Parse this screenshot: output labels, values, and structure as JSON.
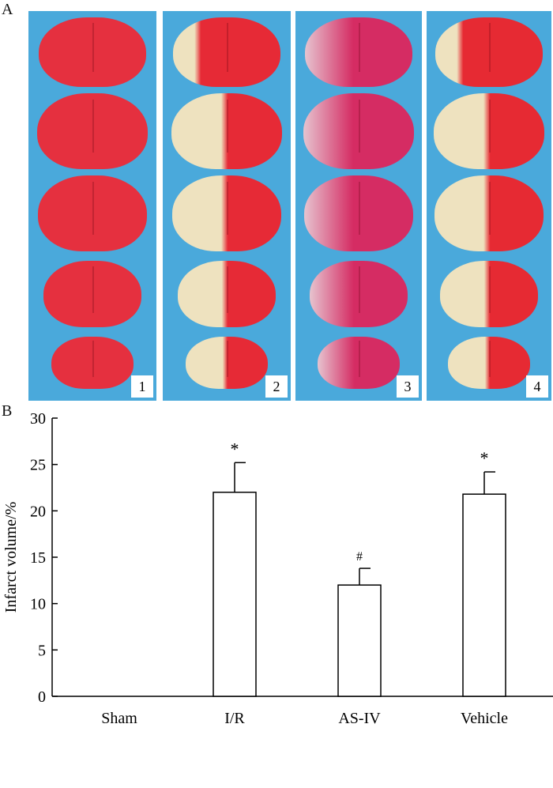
{
  "panel_a_label": "A",
  "panel_b_label": "B",
  "photos": [
    {
      "number": "1",
      "tissue_color": "#e5303f",
      "infarct_side": "none"
    },
    {
      "number": "2",
      "tissue_color": "#e62a36",
      "infarct_side": "left"
    },
    {
      "number": "3",
      "tissue_color": "#d52c63",
      "infarct_side": "left-faint"
    },
    {
      "number": "4",
      "tissue_color": "#e62a33",
      "infarct_side": "left"
    }
  ],
  "colors": {
    "photo_background": "#4aa9db",
    "infarct": "#eee2bf",
    "bar_fill": "#ffffff",
    "bar_stroke": "#000000"
  },
  "chart_data": {
    "type": "bar",
    "categories": [
      "Sham",
      "I/R",
      "AS-IV",
      "Vehicle"
    ],
    "values": [
      0,
      22,
      12,
      21.8
    ],
    "errors": [
      0,
      3.2,
      1.8,
      2.4
    ],
    "significance": [
      "",
      "*",
      "#",
      "*"
    ],
    "ylabel": "Infarct volume/%",
    "ylim": [
      0,
      30
    ],
    "yticks": [
      "0",
      "5",
      "10",
      "15",
      "20",
      "25",
      "30"
    ]
  }
}
